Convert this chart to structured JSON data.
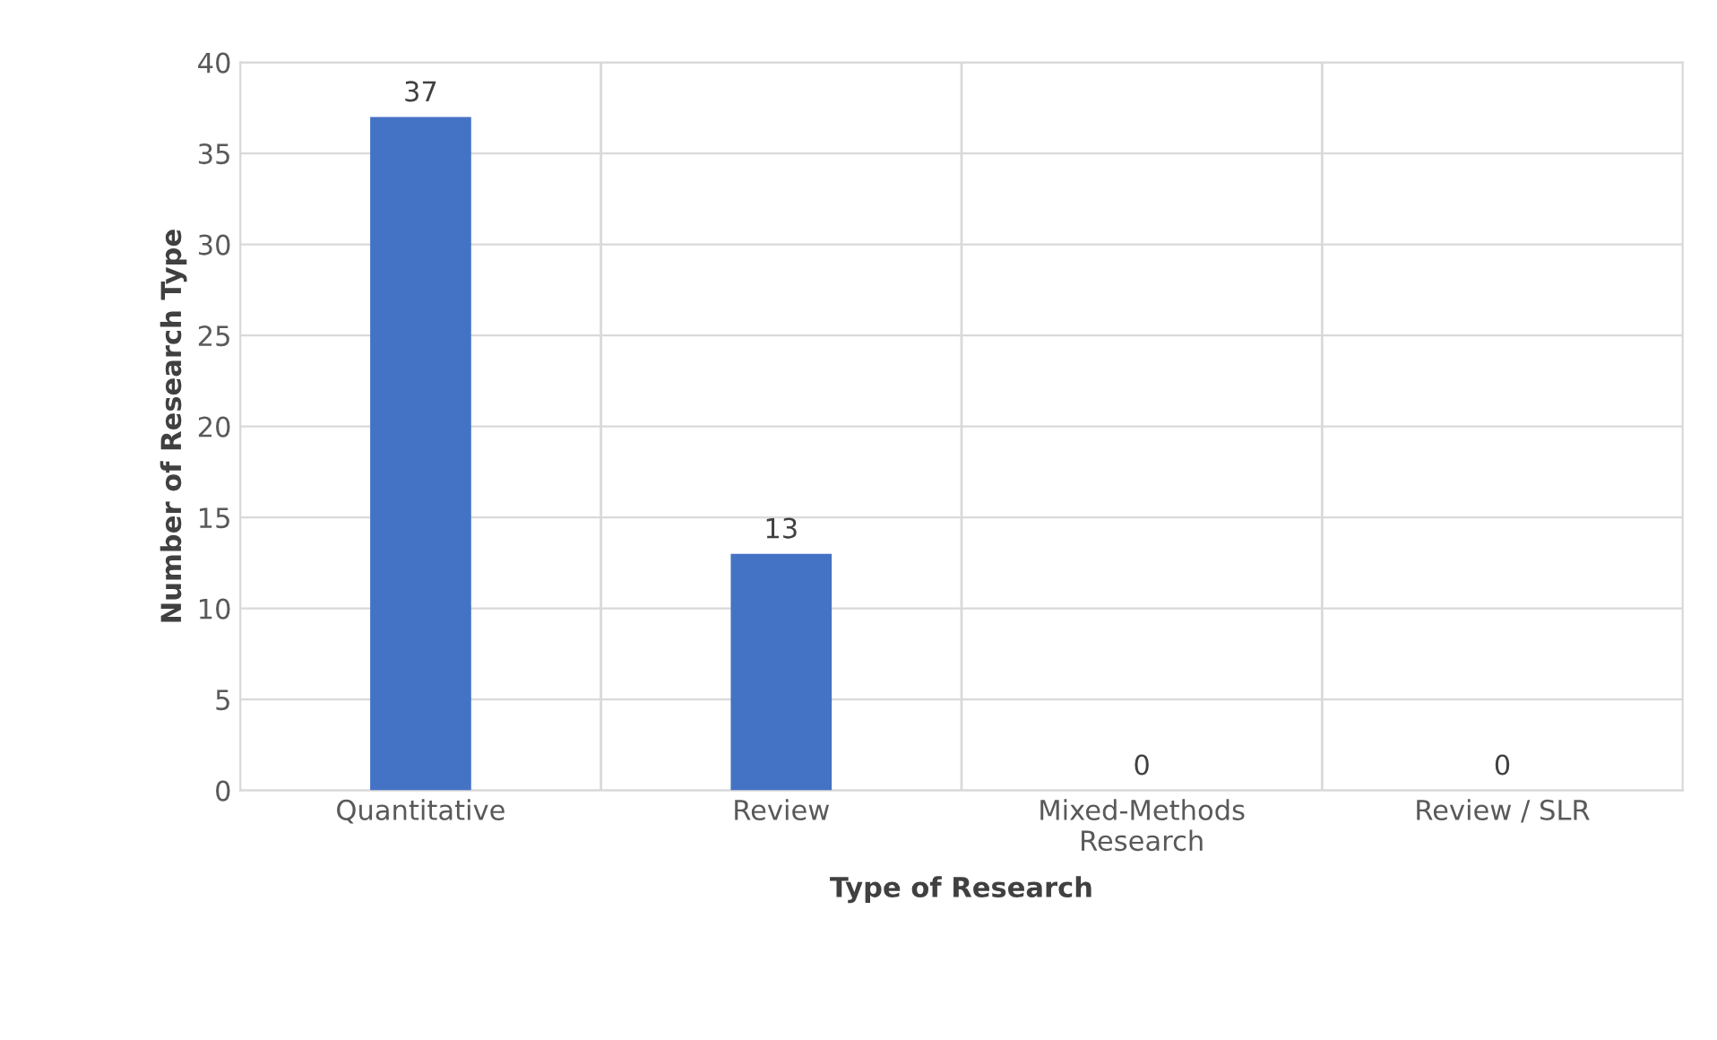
{
  "chart_data": {
    "type": "bar",
    "xlabel": "Type of Research",
    "ylabel": "Number of Research Type",
    "categories": [
      "Quantitative",
      "Review",
      "Mixed-Methods\nResearch",
      "Review / SLR"
    ],
    "values": [
      37,
      13,
      0,
      0
    ],
    "color": "#4472c4",
    "ylim": [
      0,
      40
    ],
    "yticks": [
      0,
      5,
      10,
      15,
      20,
      25,
      30,
      35,
      40
    ],
    "grid": true,
    "data_labels": true
  }
}
